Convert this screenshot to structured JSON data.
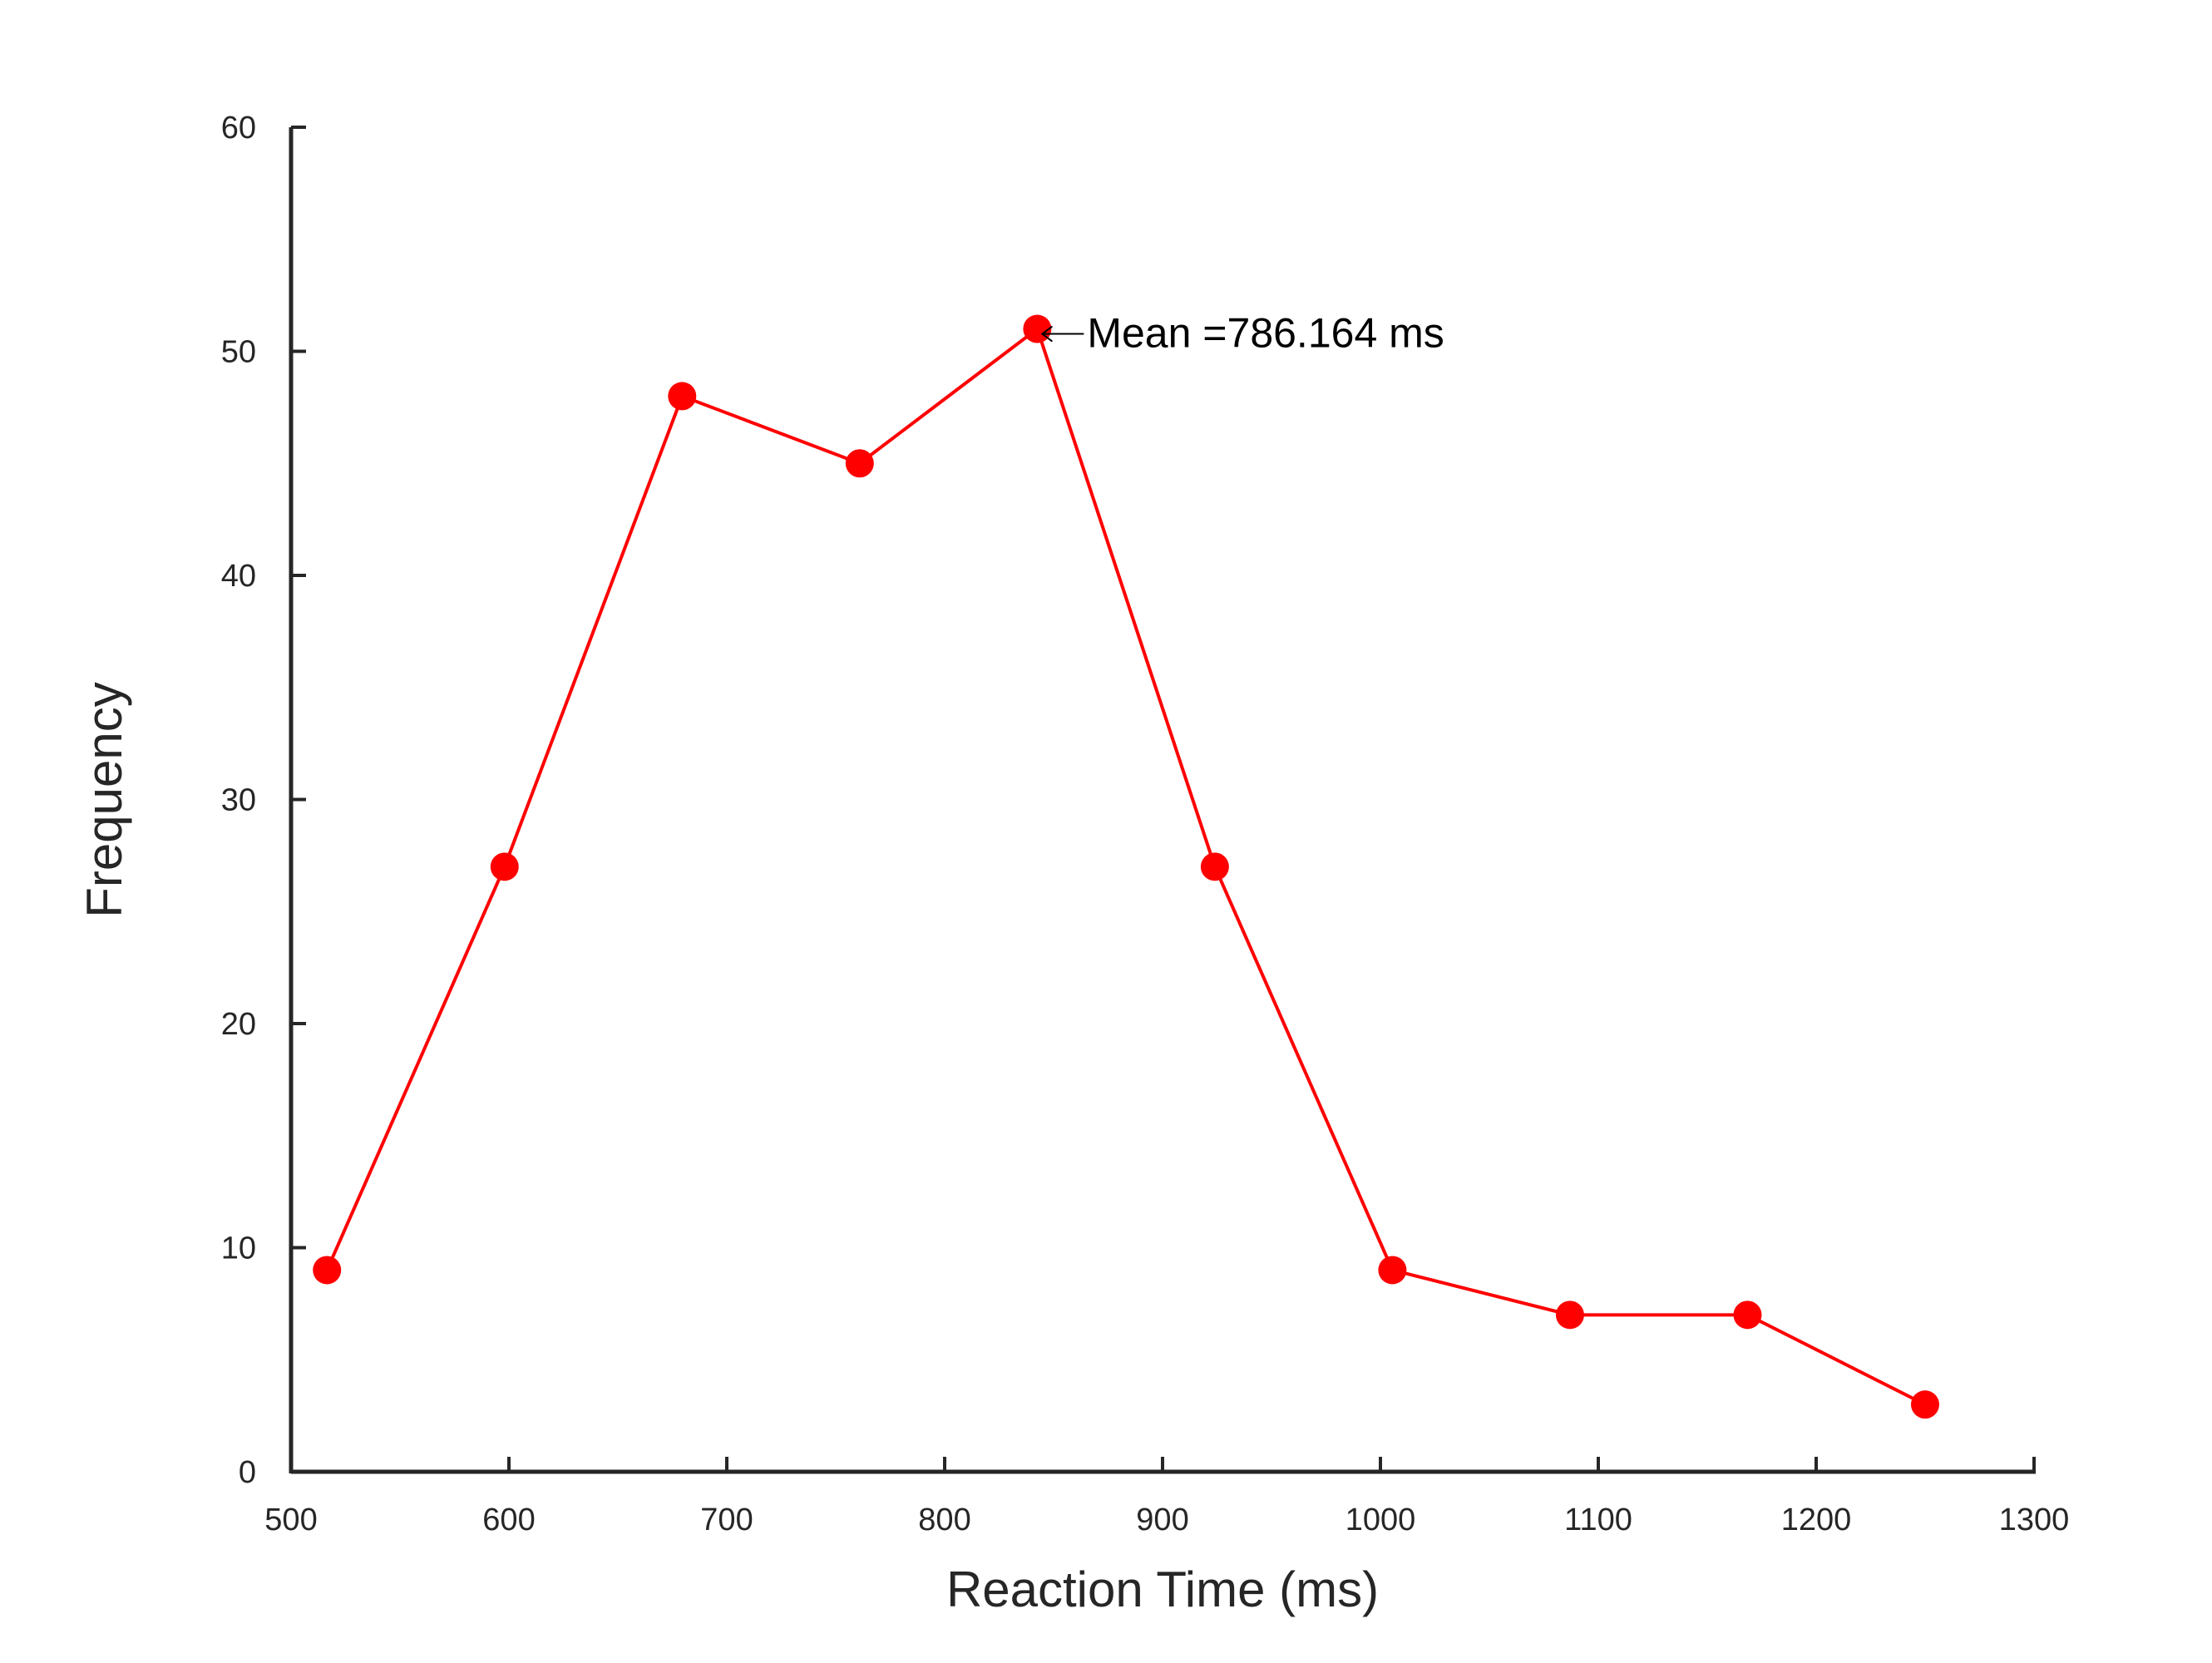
{
  "colors": {
    "series": "#ff0000",
    "axis": "#262626",
    "annotation": "#000000",
    "background": "#ffffff"
  },
  "chart_data": {
    "type": "line",
    "xlabel": "Reaction Time (ms)",
    "ylabel": "Frequency",
    "xlim": [
      500,
      1300
    ],
    "ylim": [
      0,
      60
    ],
    "x_ticks": [
      500,
      600,
      700,
      800,
      900,
      1000,
      1100,
      1200,
      1300
    ],
    "y_ticks": [
      0,
      10,
      20,
      30,
      40,
      50,
      60
    ],
    "grid": false,
    "legend": "none",
    "marker": "filled-circle",
    "series": [
      {
        "x": [
          516.5,
          598,
          679.5,
          761,
          842.5,
          924,
          1005.5,
          1087,
          1168.5,
          1250
        ],
        "values": [
          9,
          27,
          48,
          45,
          51,
          27,
          9,
          7,
          7,
          3
        ]
      }
    ],
    "annotations": [
      {
        "text": "Mean =786.164 ms",
        "x": 842.5,
        "y": 51,
        "arrow": true
      }
    ]
  }
}
